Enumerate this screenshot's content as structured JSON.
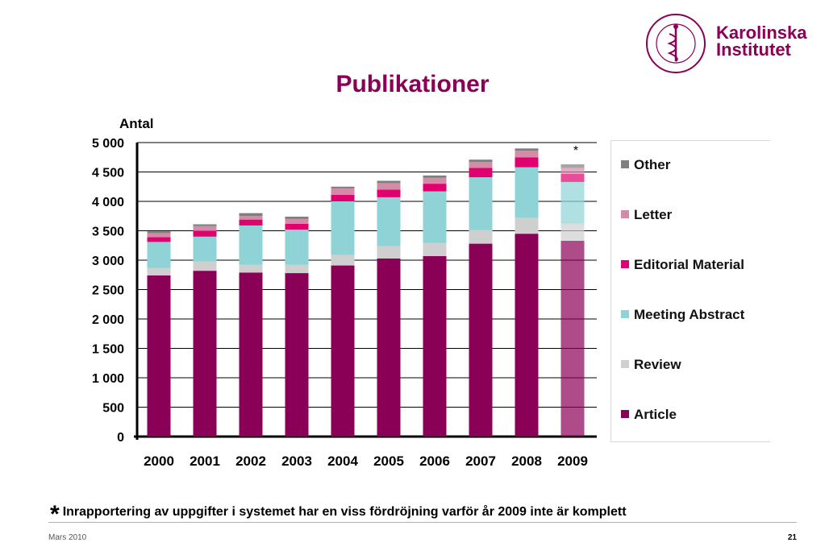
{
  "title": "Publikationer",
  "logo": {
    "line1": "Karolinska",
    "line2": "Institutet",
    "seal_text": "KAROLINSKA INSTITUTET · ANNO 1810"
  },
  "note": {
    "star": "*",
    "text": "Inrapportering av uppgifter i systemet har en viss fördröjning varför år 2009 inte är komplett"
  },
  "footer": {
    "date": "Mars 2010",
    "page": "21"
  },
  "chart_data": {
    "type": "bar",
    "stacked": true,
    "ylabel": "Antal",
    "ylim": [
      0,
      5000
    ],
    "yticks": [
      "0",
      "500",
      "1 000",
      "1 500",
      "2 000",
      "2 500",
      "3 000",
      "3 500",
      "4 000",
      "4 500",
      "5 000"
    ],
    "grid": true,
    "legend_position": "right",
    "categories": [
      "2000",
      "2001",
      "2002",
      "2003",
      "2004",
      "2005",
      "2006",
      "2007",
      "2008",
      "2009"
    ],
    "annotation": {
      "category": "2009",
      "text": "*"
    },
    "series": [
      {
        "name": "Article",
        "color": "#8b0057",
        "values": [
          2740,
          2820,
          2790,
          2780,
          2910,
          3030,
          3070,
          3280,
          3450,
          3330
        ]
      },
      {
        "name": "Review",
        "color": "#cfcfcf",
        "values": [
          130,
          160,
          130,
          140,
          180,
          210,
          220,
          230,
          270,
          290
        ]
      },
      {
        "name": "Meeting Abstract",
        "color": "#8fd3d6",
        "values": [
          440,
          420,
          670,
          600,
          910,
          830,
          880,
          900,
          860,
          710
        ]
      },
      {
        "name": "Editorial Material",
        "color": "#e0006e",
        "values": [
          80,
          100,
          100,
          100,
          110,
          130,
          130,
          160,
          170,
          140
        ]
      },
      {
        "name": "Letter",
        "color": "#d58aa8",
        "values": [
          70,
          80,
          60,
          80,
          110,
          110,
          100,
          100,
          110,
          100
        ]
      },
      {
        "name": "Other",
        "color": "#7f7f7f",
        "values": [
          30,
          30,
          50,
          40,
          30,
          40,
          40,
          40,
          40,
          60
        ]
      }
    ]
  }
}
